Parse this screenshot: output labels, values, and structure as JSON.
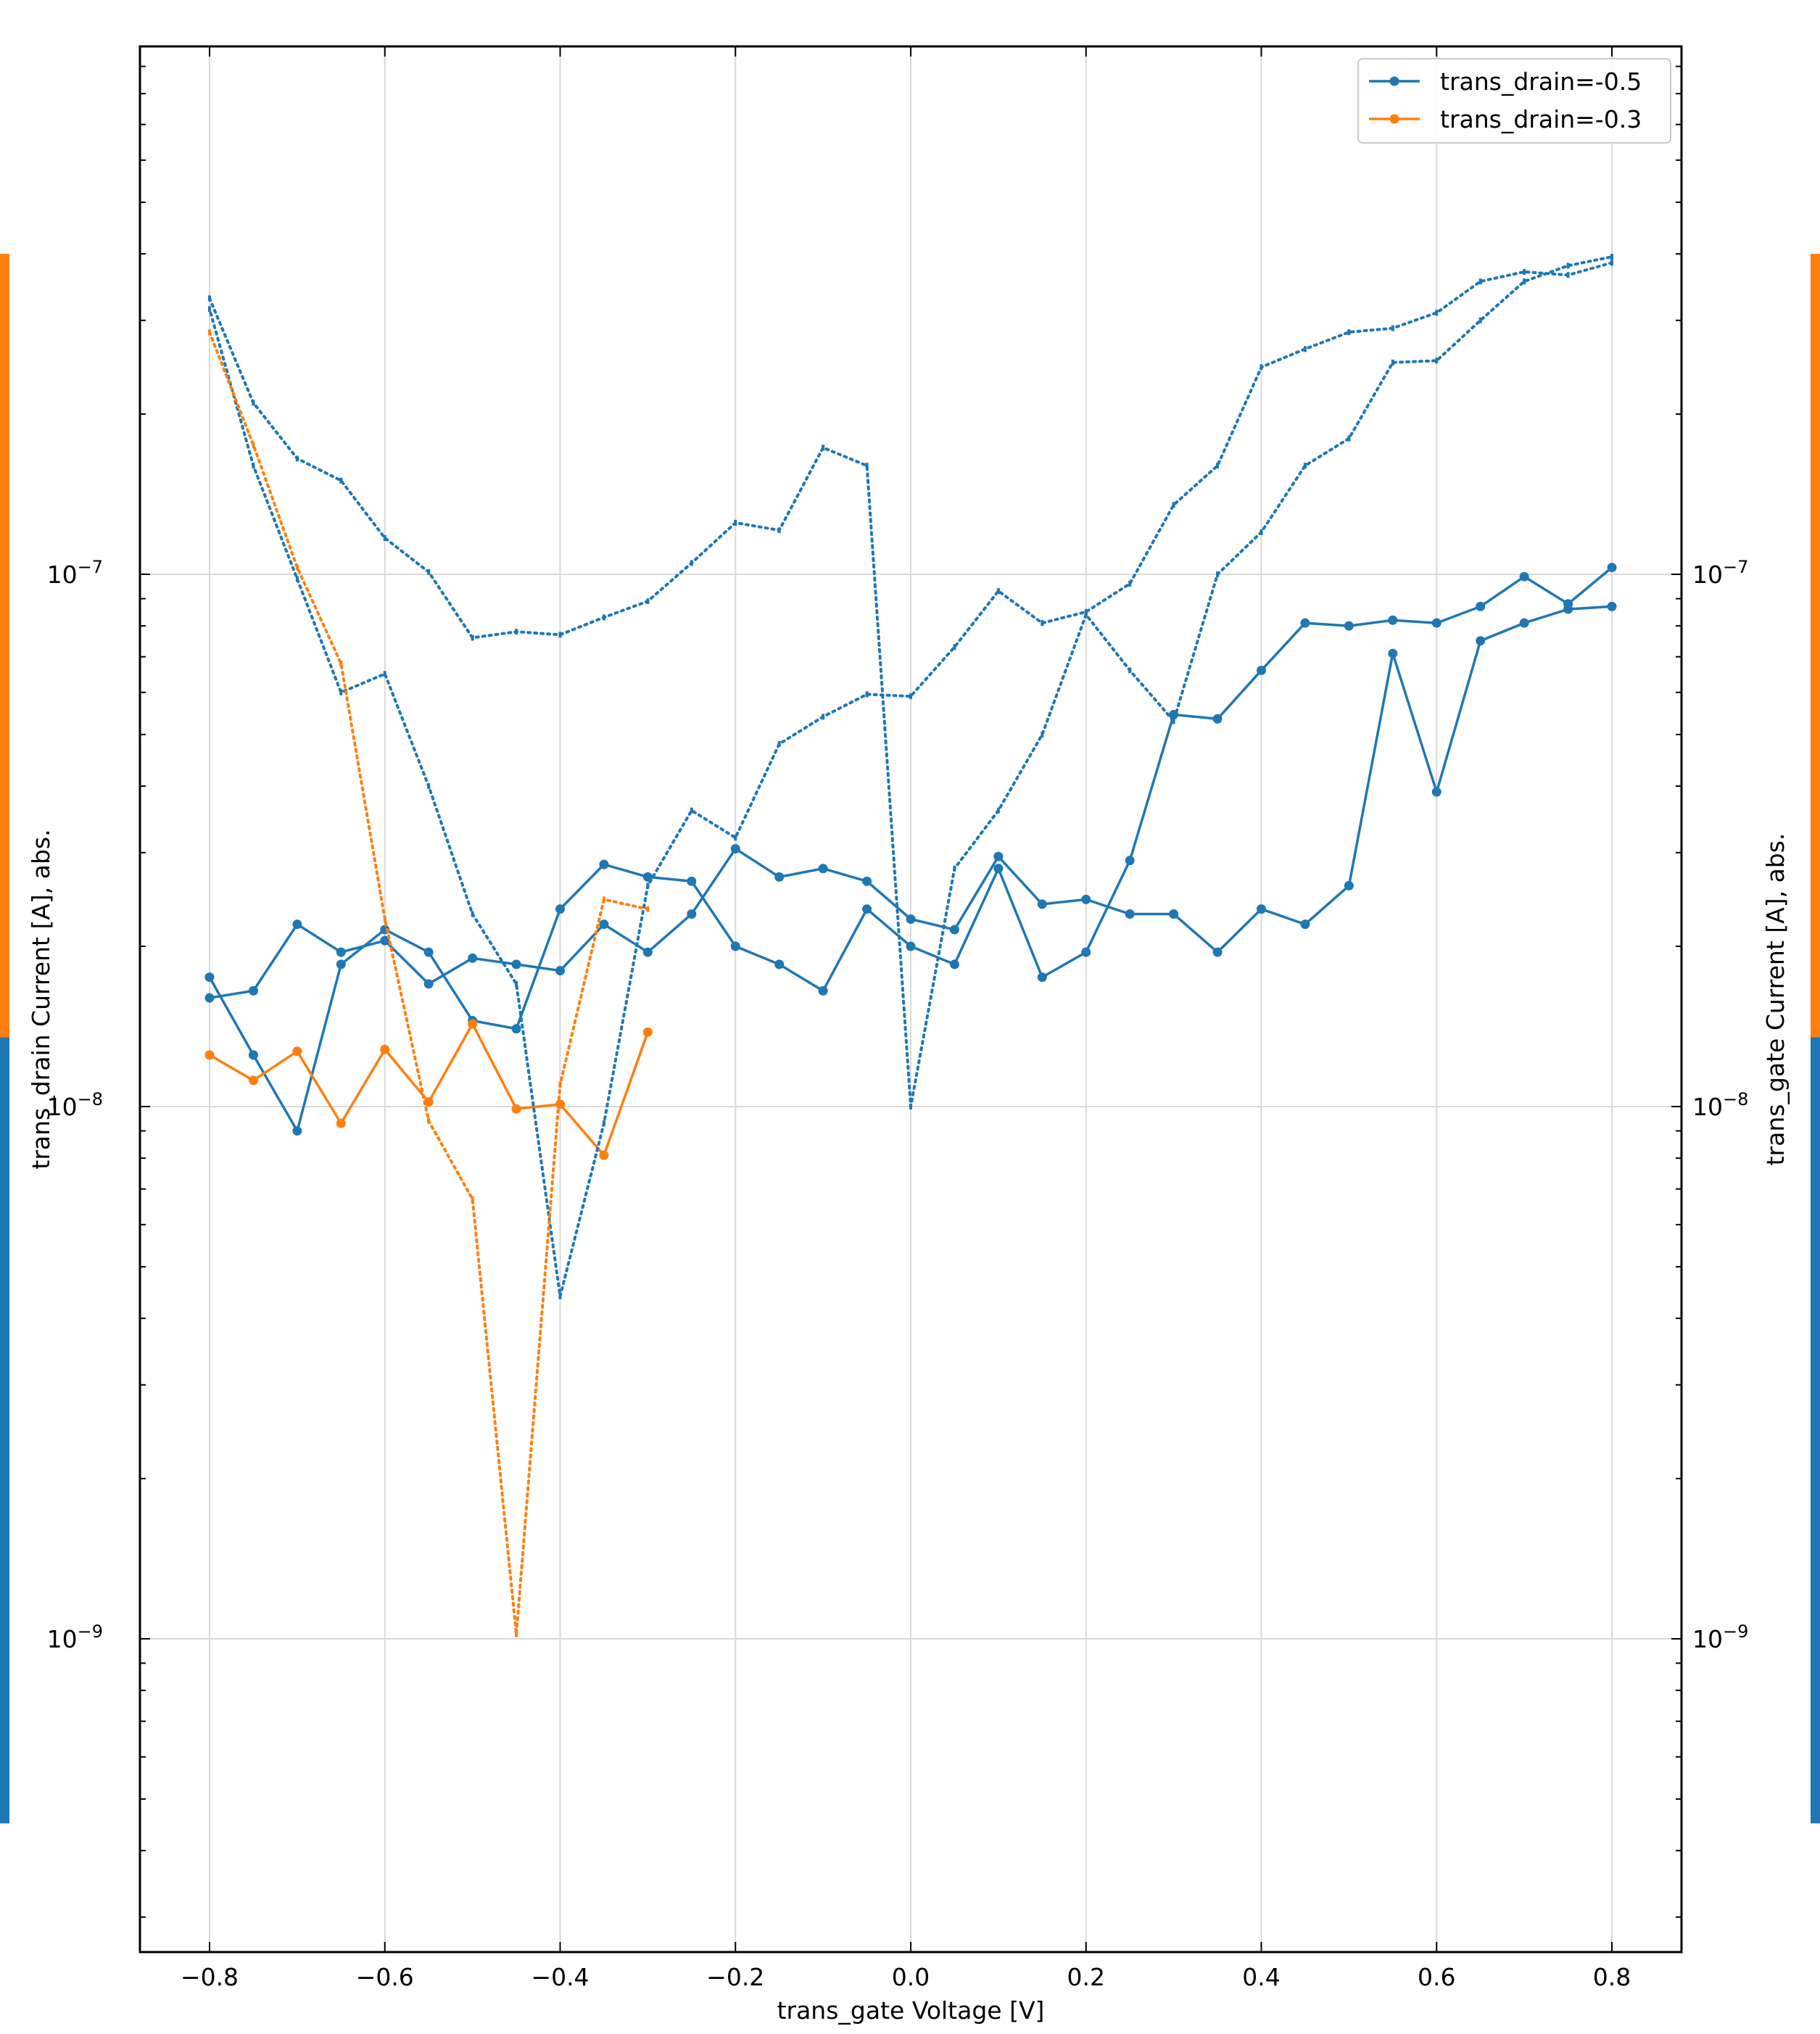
{
  "chart_data": {
    "type": "line",
    "xlabel": "trans_gate Voltage [V]",
    "ylabel": "trans_drain Current [A], abs.",
    "y2label": "trans_gate Current [A], abs.",
    "xlim": [
      -0.88,
      0.88
    ],
    "ylim": [
      3e-10,
      6e-07
    ],
    "yscale": "log",
    "xticks": [
      -0.8,
      -0.6,
      -0.4,
      -0.2,
      0.0,
      0.2,
      0.4,
      0.6,
      0.8
    ],
    "xtick_labels": [
      "−0.8",
      "−0.6",
      "−0.4",
      "−0.2",
      "0.0",
      "0.2",
      "0.4",
      "0.6",
      "0.8"
    ],
    "ytick_labels": [
      {
        "value": 1e-07,
        "base": "10",
        "exp": "−7"
      },
      {
        "value": 1e-08,
        "base": "10",
        "exp": "−8"
      },
      {
        "value": 1e-09,
        "base": "10",
        "exp": "−9"
      }
    ],
    "grid": true,
    "legend_position": "top-right",
    "legend": [
      "trans_drain=-0.5",
      "trans_drain=-0.3"
    ],
    "colors": {
      "blue": "#1f77b4",
      "orange": "#ff7f0e"
    },
    "side_bars": {
      "left": [
        {
          "color": "#ff7f0e",
          "from": 4e-07,
          "to": 1.35e-08
        },
        {
          "color": "#1f77b4",
          "from": 1.35e-08,
          "to": 4.5e-10
        }
      ],
      "right": [
        {
          "color": "#ff7f0e",
          "from": 4e-07,
          "to": 1.35e-08
        },
        {
          "color": "#1f77b4",
          "from": 1.35e-08,
          "to": 4.5e-10
        }
      ]
    },
    "series": [
      {
        "color": "#1f77b4",
        "style": "solid",
        "marker": "dot",
        "x": [
          -0.8,
          -0.75,
          -0.7,
          -0.65,
          -0.6,
          -0.55,
          -0.5,
          -0.45,
          -0.4,
          -0.35,
          -0.3,
          -0.25,
          -0.2,
          -0.15,
          -0.1,
          -0.05,
          0.0,
          0.05,
          0.1,
          0.15,
          0.2,
          0.25,
          0.3,
          0.35,
          0.4,
          0.45,
          0.5,
          0.55,
          0.6,
          0.65,
          0.7,
          0.75,
          0.8
        ],
        "y": [
          1.6e-08,
          1.65e-08,
          2.2e-08,
          1.95e-08,
          2.05e-08,
          1.7e-08,
          1.9e-08,
          1.85e-08,
          1.8e-08,
          2.2e-08,
          1.95e-08,
          2.3e-08,
          3.05e-08,
          2.7e-08,
          2.8e-08,
          2.65e-08,
          2.25e-08,
          2.15e-08,
          2.95e-08,
          2.4e-08,
          2.45e-08,
          2.3e-08,
          2.3e-08,
          1.95e-08,
          2.35e-08,
          2.2e-08,
          2.6e-08,
          7.1e-08,
          3.9e-08,
          7.5e-08,
          8.1e-08,
          8.6e-08,
          8.7e-08
        ]
      },
      {
        "color": "#1f77b4",
        "style": "solid",
        "marker": "dot",
        "x": [
          0.8,
          0.75,
          0.7,
          0.65,
          0.6,
          0.55,
          0.5,
          0.45,
          0.4,
          0.35,
          0.3,
          0.25,
          0.2,
          0.15,
          0.1,
          0.05,
          0.0,
          -0.05,
          -0.1,
          -0.15,
          -0.2,
          -0.25,
          -0.3,
          -0.35,
          -0.4,
          -0.45,
          -0.5,
          -0.55,
          -0.6,
          -0.65,
          -0.7,
          -0.75,
          -0.8
        ],
        "y": [
          1.03e-07,
          8.8e-08,
          9.9e-08,
          8.7e-08,
          8.1e-08,
          8.2e-08,
          8e-08,
          8.1e-08,
          6.6e-08,
          5.35e-08,
          5.45e-08,
          2.9e-08,
          1.95e-08,
          1.75e-08,
          2.8e-08,
          1.85e-08,
          2e-08,
          2.35e-08,
          1.65e-08,
          1.85e-08,
          2e-08,
          2.65e-08,
          2.7e-08,
          2.85e-08,
          2.35e-08,
          1.4e-08,
          1.45e-08,
          1.95e-08,
          2.15e-08,
          1.85e-08,
          9e-09,
          1.25e-08,
          1.75e-08
        ]
      },
      {
        "color": "#ff7f0e",
        "style": "solid",
        "marker": "dot",
        "x": [
          -0.8,
          -0.75,
          -0.7,
          -0.65,
          -0.6,
          -0.55,
          -0.5,
          -0.45,
          -0.4,
          -0.35,
          -0.3
        ],
        "y": [
          1.25e-08,
          1.12e-08,
          1.27e-08,
          9.3e-09,
          1.28e-08,
          1.02e-08,
          1.43e-08,
          9.9e-09,
          1.01e-08,
          8.1e-09,
          1.38e-08
        ]
      },
      {
        "color": "#1f77b4",
        "style": "dotted",
        "marker": "tick",
        "x": [
          -0.8,
          -0.75,
          -0.7,
          -0.65,
          -0.6,
          -0.55,
          -0.5,
          -0.45,
          -0.4,
          -0.35,
          -0.3,
          -0.25,
          -0.2,
          -0.15,
          -0.1,
          -0.05,
          0.0,
          0.05,
          0.1,
          0.15,
          0.2,
          0.25,
          0.3,
          0.35,
          0.4,
          0.45,
          0.5,
          0.55,
          0.6,
          0.65,
          0.7,
          0.75,
          0.8
        ],
        "y": [
          3.3e-07,
          2.1e-07,
          1.65e-07,
          1.5e-07,
          1.17e-07,
          1.01e-07,
          7.6e-08,
          7.8e-08,
          7.7e-08,
          8.3e-08,
          8.9e-08,
          1.05e-07,
          1.25e-07,
          1.21e-07,
          1.73e-07,
          1.6e-07,
          1e-08,
          2.8e-08,
          3.6e-08,
          5e-08,
          8.4e-08,
          6.6e-08,
          5.3e-08,
          1e-07,
          1.2e-07,
          1.6e-07,
          1.8e-07,
          2.5e-07,
          2.52e-07,
          3e-07,
          3.55e-07,
          3.8e-07,
          3.95e-07
        ]
      },
      {
        "color": "#1f77b4",
        "style": "dotted",
        "marker": "tick",
        "x": [
          0.8,
          0.75,
          0.7,
          0.65,
          0.6,
          0.55,
          0.5,
          0.45,
          0.4,
          0.35,
          0.3,
          0.25,
          0.2,
          0.15,
          0.1,
          0.05,
          0.0,
          -0.05,
          -0.1,
          -0.15,
          -0.2,
          -0.25,
          -0.3,
          -0.35,
          -0.4,
          -0.45,
          -0.5,
          -0.55,
          -0.6,
          -0.65,
          -0.7,
          -0.75,
          -0.8
        ],
        "y": [
          3.85e-07,
          3.65e-07,
          3.7e-07,
          3.55e-07,
          3.1e-07,
          2.9e-07,
          2.85e-07,
          2.65e-07,
          2.45e-07,
          1.6e-07,
          1.35e-07,
          9.6e-08,
          8.5e-08,
          8.1e-08,
          9.3e-08,
          7.3e-08,
          5.9e-08,
          5.95e-08,
          5.4e-08,
          4.8e-08,
          3.2e-08,
          3.6e-08,
          2.6e-08,
          9.3e-09,
          4.4e-09,
          1.7e-08,
          2.3e-08,
          4e-08,
          6.5e-08,
          6e-08,
          9.8e-08,
          1.6e-07,
          3.15e-07
        ]
      },
      {
        "color": "#ff7f0e",
        "style": "dotted",
        "marker": "tick",
        "x": [
          -0.8,
          -0.75,
          -0.7,
          -0.65,
          -0.6,
          -0.55,
          -0.5,
          -0.45,
          -0.4,
          -0.35,
          -0.3
        ],
        "y": [
          2.85e-07,
          1.75e-07,
          1.03e-07,
          6.8e-08,
          2.25e-08,
          9.4e-09,
          6.7e-09,
          1.02e-09,
          1.1e-08,
          2.45e-08,
          2.35e-08
        ]
      }
    ]
  }
}
